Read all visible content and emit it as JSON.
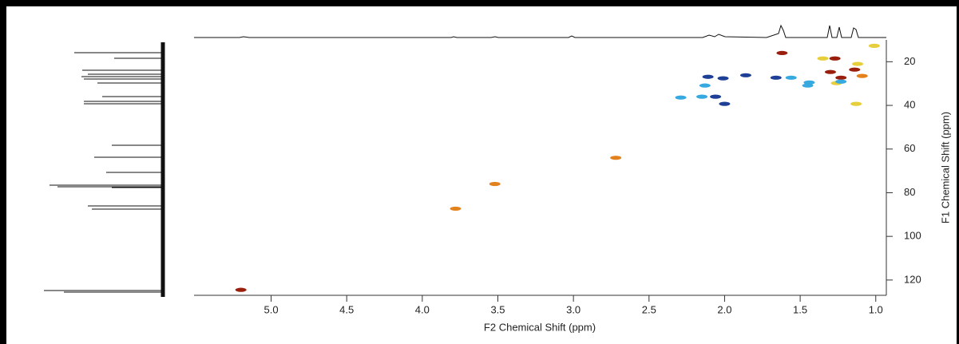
{
  "chart_data": {
    "type": "scatter",
    "x_label": "F2 Chemical Shift (ppm)",
    "y_label": "F1 Chemical Shift (ppm)",
    "xlim": [
      5.51,
      0.93
    ],
    "ylim": [
      10,
      127
    ],
    "xticks": [
      {
        "value": 5,
        "label": "5.0"
      },
      {
        "value": 4.5,
        "label": "4.5"
      },
      {
        "value": 4,
        "label": "4.0"
      },
      {
        "value": 3.5,
        "label": "3.5"
      },
      {
        "value": 3,
        "label": "3.0"
      },
      {
        "value": 2.5,
        "label": "2.5"
      },
      {
        "value": 2,
        "label": "2.0"
      },
      {
        "value": 1.5,
        "label": "1.5"
      },
      {
        "value": 1,
        "label": "1.0"
      }
    ],
    "yticks": [
      20,
      40,
      60,
      80,
      100,
      120
    ],
    "series": [
      {
        "color": "#9a1e0c",
        "x": [
          5.2,
          1.62,
          1.27,
          1.3,
          1.23,
          1.14
        ],
        "values": [
          124.5,
          16,
          18.5,
          24.7,
          27.3,
          23.6
        ]
      },
      {
        "color": "#e3821c",
        "x": [
          3.78,
          3.52,
          2.72,
          1.09
        ],
        "values": [
          87.3,
          76,
          64,
          26.5
        ]
      },
      {
        "color": "#e6cf3a",
        "x": [
          1.01,
          1.13,
          1.26,
          1.35,
          1.12
        ],
        "values": [
          12.7,
          39.3,
          29.8,
          18.5,
          21
        ]
      },
      {
        "color": "#1d4096",
        "x": [
          2.06,
          2.0,
          2.11,
          2.01,
          1.86,
          1.66
        ],
        "values": [
          36,
          39.3,
          26.9,
          27.6,
          26.2,
          27.3
        ]
      },
      {
        "color": "#35a9e0",
        "x": [
          2.29,
          2.15,
          2.13,
          1.56,
          1.44,
          1.45,
          1.23
        ],
        "values": [
          36.4,
          36,
          30.9,
          27.3,
          29.5,
          30.9,
          29.1
        ]
      }
    ]
  }
}
